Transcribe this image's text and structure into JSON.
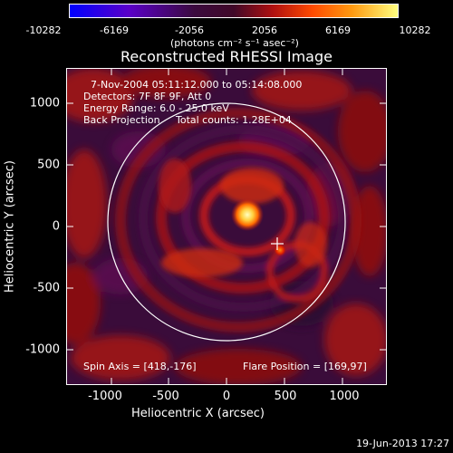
{
  "colorbar": {
    "ticks": [
      "-10282",
      "-6169",
      "-2056",
      "2056",
      "6169",
      "10282"
    ],
    "unit_text": "(photons cm⁻² s⁻¹ asec⁻²)"
  },
  "title": "Reconstructed RHESSI Image",
  "info": {
    "time_range": "7-Nov-2004 05:11:12.000 to 05:14:08.000",
    "detectors": "Detectors: 7F 8F 9F, Att 0",
    "energy_range": "Energy Range: 6.0 - 25.0 keV",
    "method": "Back Projection",
    "total_counts": "Total counts: 1.28E+04",
    "spin_axis": "Spin Axis = [418,-176]",
    "flare_position": "Flare Position = [169,97]"
  },
  "axes": {
    "xlabel": "Heliocentric X (arcsec)",
    "ylabel": "Heliocentric Y (arcsec)",
    "x_ticks": [
      "-1000",
      "-500",
      "0",
      "500",
      "1000"
    ],
    "y_ticks": [
      "1000",
      "500",
      "0",
      "-500",
      "-1000"
    ],
    "xlim": [
      -1300,
      1300
    ],
    "ylim": [
      -1300,
      1300
    ]
  },
  "footer": "19-Jun-2013 17:27"
}
